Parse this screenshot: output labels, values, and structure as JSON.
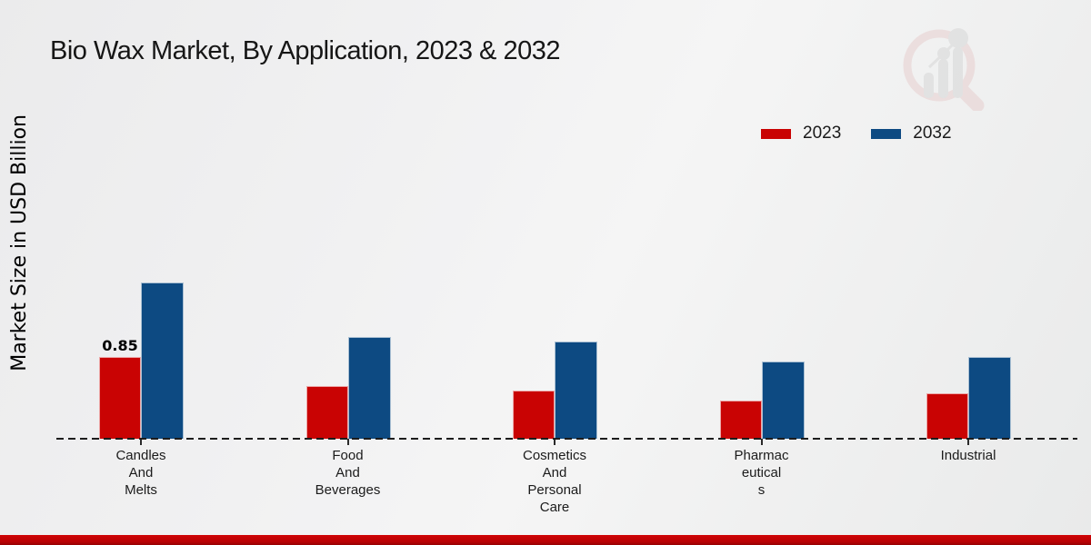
{
  "page": {
    "title": "Bio Wax Market, By Application, 2023 & 2032",
    "ylabel": "Market Size in USD Billion"
  },
  "chart_data": {
    "type": "bar",
    "title": "Bio Wax Market, By Application, 2023 & 2032",
    "xlabel": "",
    "ylabel": "Market Size in USD Billion",
    "categories": [
      "Candles And Melts",
      "Food And Beverages",
      "Cosmetics And Personal Care",
      "Pharmaceuticals",
      "Industrial"
    ],
    "category_label_lines": [
      [
        "Candles",
        "And",
        "Melts"
      ],
      [
        "Food",
        "And",
        "Beverages"
      ],
      [
        "Cosmetics",
        "And",
        "Personal",
        "Care"
      ],
      [
        "Pharmac",
        "eutical",
        "s"
      ],
      [
        "Industrial"
      ]
    ],
    "series": [
      {
        "name": "2023",
        "color": "#c90303",
        "values": [
          0.85,
          0.55,
          0.5,
          0.4,
          0.47
        ]
      },
      {
        "name": "2032",
        "color": "#0d4a82",
        "values": [
          1.62,
          1.06,
          1.01,
          0.8,
          0.85
        ]
      }
    ],
    "data_labels": [
      {
        "series_index": 0,
        "category_index": 0,
        "text": "0.85"
      }
    ],
    "ylim": [
      0,
      1.8
    ],
    "grid": false,
    "legend_position": "top-right",
    "baseline_style": "dashed"
  },
  "footer": {
    "accent_color": "#c40105"
  }
}
